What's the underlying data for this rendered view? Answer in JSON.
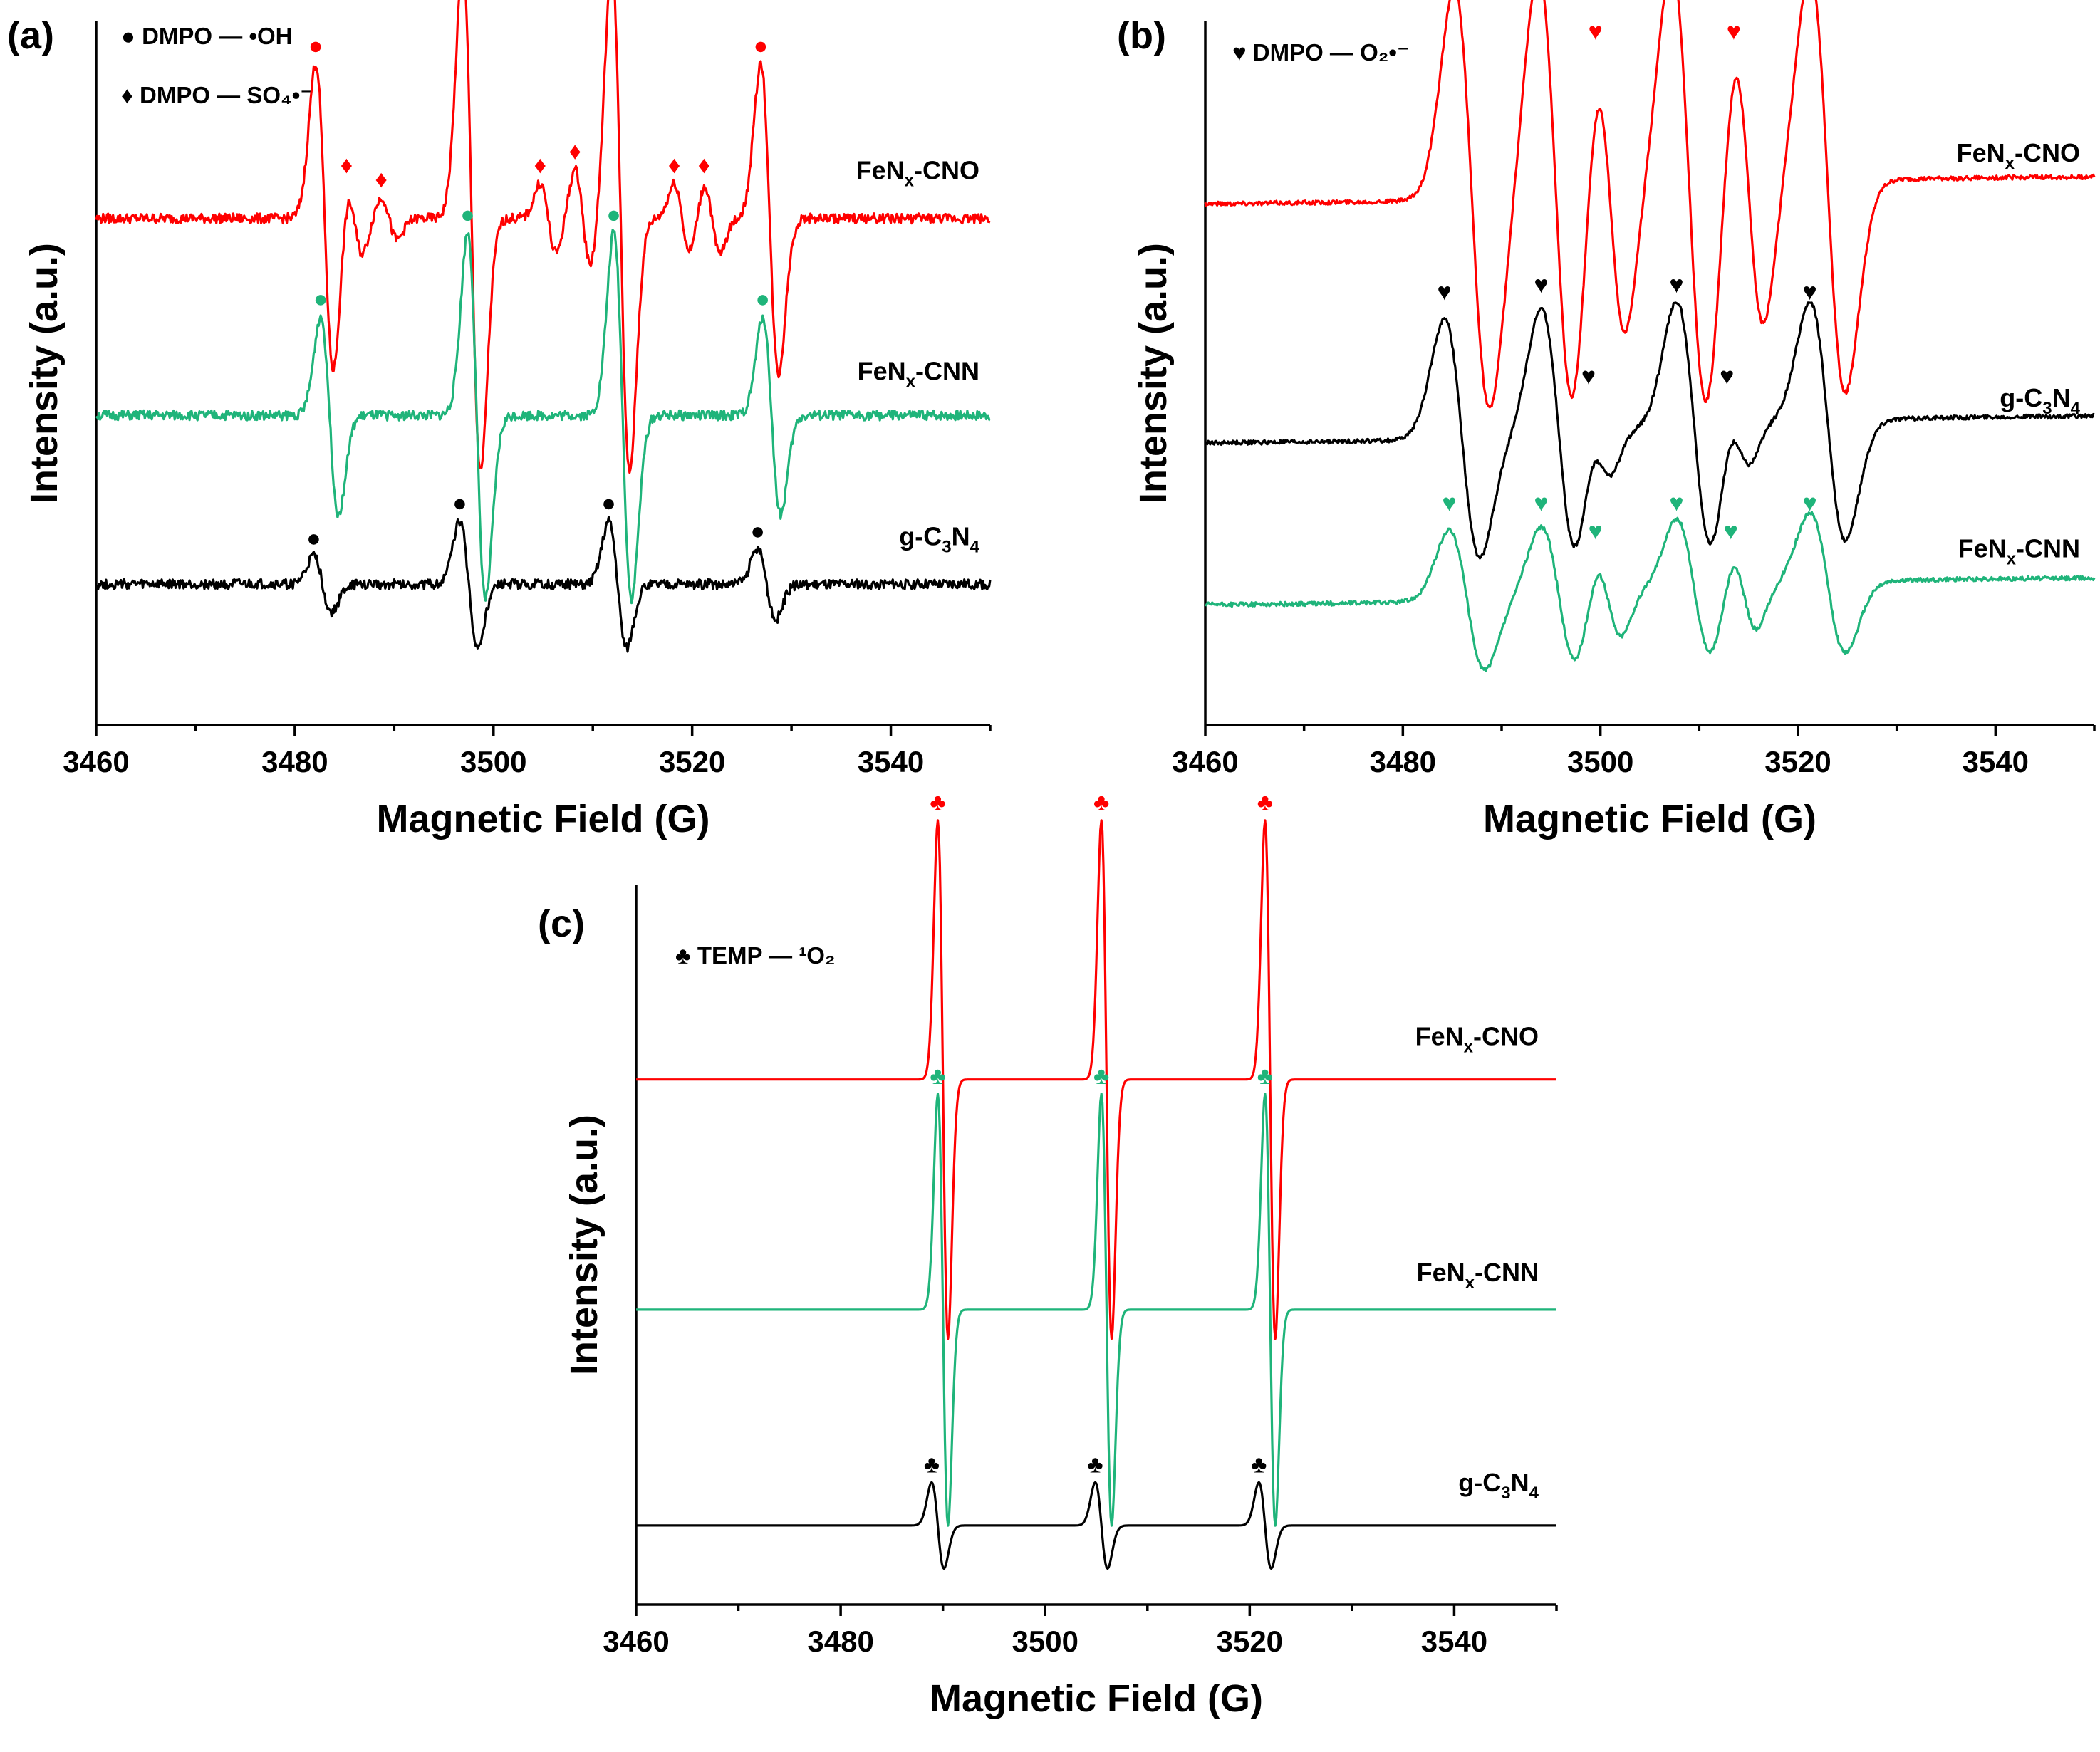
{
  "colors": {
    "red": "#ff0000",
    "green": "#1fb47a",
    "black": "#000000"
  },
  "chart_data": [
    {
      "panel": "(a)",
      "type": "line",
      "xlabel": "Magnetic Field (G)",
      "ylabel": "Intensity (a.u.)",
      "xlim": [
        3460,
        3550
      ],
      "xticks": [
        3460,
        3480,
        3500,
        3520,
        3540
      ],
      "tick_labels": [
        "3460",
        "3480",
        "3500",
        "3520",
        "3540"
      ],
      "legend": [
        {
          "symbol": "●",
          "text": "DMPO — •OH"
        },
        {
          "symbol": "♦",
          "text": "DMPO — SO₄•⁻"
        }
      ],
      "series": [
        {
          "name": "FeNx-CNO",
          "label": {
            "main": "FeN",
            "sub": "x",
            "rest": "-CNO"
          },
          "color": "red",
          "level": 0.72,
          "peaks": [
            {
              "x": 3483.0,
              "amp": 0.22,
              "w": 0.9,
              "marker": "●"
            },
            {
              "x": 3497.8,
              "amp": 0.36,
              "w": 0.9,
              "marker": "●"
            },
            {
              "x": 3512.8,
              "amp": 0.36,
              "w": 0.9,
              "marker": "●"
            },
            {
              "x": 3527.8,
              "amp": 0.22,
              "w": 0.9,
              "marker": "●"
            },
            {
              "x": 3486.0,
              "amp": 0.05,
              "w": 0.8,
              "marker": "♦"
            },
            {
              "x": 3489.5,
              "amp": 0.03,
              "w": 0.8,
              "marker": "♦"
            },
            {
              "x": 3505.5,
              "amp": 0.05,
              "w": 0.8,
              "marker": "♦"
            },
            {
              "x": 3509.0,
              "amp": 0.07,
              "w": 0.8,
              "marker": "♦"
            },
            {
              "x": 3519.0,
              "amp": 0.05,
              "w": 0.8,
              "marker": "♦"
            },
            {
              "x": 3522.0,
              "amp": 0.05,
              "w": 0.8,
              "marker": "♦"
            }
          ]
        },
        {
          "name": "FeNx-CNN",
          "label": {
            "main": "FeN",
            "sub": "x",
            "rest": "-CNN"
          },
          "color": "green",
          "level": 0.44,
          "peaks": [
            {
              "x": 3483.5,
              "amp": 0.14,
              "w": 0.9,
              "marker": "●"
            },
            {
              "x": 3498.3,
              "amp": 0.26,
              "w": 0.9,
              "marker": "●"
            },
            {
              "x": 3513.0,
              "amp": 0.26,
              "w": 0.9,
              "marker": "●"
            },
            {
              "x": 3528.0,
              "amp": 0.14,
              "w": 0.9,
              "marker": "●"
            }
          ]
        },
        {
          "name": "g-C3N4",
          "label": {
            "main": "g-C",
            "sub": "3",
            "rest": "N",
            "sub2": "4"
          },
          "color": "black",
          "level": 0.2,
          "peaks": [
            {
              "x": 3482.8,
              "amp": 0.04,
              "w": 0.9,
              "marker": "●"
            },
            {
              "x": 3497.5,
              "amp": 0.09,
              "w": 0.9,
              "marker": "●"
            },
            {
              "x": 3512.5,
              "amp": 0.09,
              "w": 0.9,
              "marker": "●"
            },
            {
              "x": 3527.5,
              "amp": 0.05,
              "w": 0.9,
              "marker": "●"
            }
          ]
        }
      ]
    },
    {
      "panel": "(b)",
      "type": "line",
      "xlabel": "Magnetic Field (G)",
      "ylabel": "Intensity (a.u.)",
      "xlim": [
        3460,
        3550
      ],
      "xticks": [
        3460,
        3480,
        3500,
        3520,
        3540
      ],
      "tick_labels": [
        "3460",
        "3480",
        "3500",
        "3520",
        "3540"
      ],
      "legend": [
        {
          "symbol": "♥",
          "text": "DMPO — O₂•⁻"
        }
      ],
      "series": [
        {
          "name": "FeNx-CNO",
          "label": {
            "main": "FeN",
            "sub": "x",
            "rest": "-CNO"
          },
          "color": "red",
          "level": 0.76,
          "peaks": [
            {
              "x": 3487.0,
              "amp": 0.3,
              "w": 1.8,
              "marker": "♥"
            },
            {
              "x": 3495.5,
              "amp": 0.32,
              "w": 1.8,
              "marker": "♥"
            },
            {
              "x": 3501.0,
              "amp": 0.2,
              "w": 1.5,
              "marker": "♥"
            },
            {
              "x": 3509.0,
              "amp": 0.32,
              "w": 1.8,
              "marker": "♥"
            },
            {
              "x": 3515.0,
              "amp": 0.2,
              "w": 1.5,
              "marker": "♥"
            },
            {
              "x": 3523.0,
              "amp": 0.3,
              "w": 1.8,
              "marker": "♥"
            }
          ]
        },
        {
          "name": "g-C3N4",
          "label": {
            "main": "g-C",
            "sub": "3",
            "rest": "N",
            "sub2": "4"
          },
          "color": "black",
          "level": 0.42,
          "peaks": [
            {
              "x": 3486.0,
              "amp": 0.17,
              "w": 1.8,
              "marker": "♥"
            },
            {
              "x": 3495.8,
              "amp": 0.18,
              "w": 1.8,
              "marker": "♥"
            },
            {
              "x": 3500.0,
              "amp": 0.05,
              "w": 1.2,
              "marker": "♥"
            },
            {
              "x": 3509.5,
              "amp": 0.18,
              "w": 1.8,
              "marker": "♥"
            },
            {
              "x": 3514.0,
              "amp": 0.05,
              "w": 1.2,
              "marker": "♥"
            },
            {
              "x": 3523.0,
              "amp": 0.17,
              "w": 1.8,
              "marker": "♥"
            }
          ]
        },
        {
          "name": "FeNx-CNN",
          "label": {
            "main": "FeN",
            "sub": "x",
            "rest": "-CNN"
          },
          "color": "green",
          "level": 0.19,
          "peaks": [
            {
              "x": 3486.5,
              "amp": 0.1,
              "w": 1.8,
              "marker": "♥"
            },
            {
              "x": 3495.8,
              "amp": 0.1,
              "w": 1.8,
              "marker": "♥"
            },
            {
              "x": 3500.8,
              "amp": 0.06,
              "w": 1.3,
              "marker": "♥"
            },
            {
              "x": 3509.5,
              "amp": 0.1,
              "w": 1.8,
              "marker": "♥"
            },
            {
              "x": 3514.5,
              "amp": 0.06,
              "w": 1.3,
              "marker": "♥"
            },
            {
              "x": 3523.0,
              "amp": 0.1,
              "w": 1.8,
              "marker": "♥"
            }
          ]
        }
      ]
    },
    {
      "panel": "(c)",
      "type": "line",
      "xlabel": "Magnetic Field (G)",
      "ylabel": "Intensity (a.u.)",
      "xlim": [
        3460,
        3550
      ],
      "xticks": [
        3460,
        3480,
        3500,
        3520,
        3540
      ],
      "tick_labels": [
        "3460",
        "3480",
        "3500",
        "3520",
        "3540"
      ],
      "legend": [
        {
          "symbol": "♣",
          "text": "TEMP — ¹O₂"
        }
      ],
      "series": [
        {
          "name": "FeNx-CNO",
          "label": {
            "main": "FeN",
            "sub": "x",
            "rest": "-CNO"
          },
          "color": "red",
          "level": 0.73,
          "peaks": [
            {
              "x": 3490.0,
              "amp": 0.36,
              "w": 0.5,
              "marker": "♣"
            },
            {
              "x": 3506.0,
              "amp": 0.36,
              "w": 0.5,
              "marker": "♣"
            },
            {
              "x": 3522.0,
              "amp": 0.36,
              "w": 0.5,
              "marker": "♣"
            }
          ]
        },
        {
          "name": "FeNx-CNN",
          "label": {
            "main": "FeN",
            "sub": "x",
            "rest": "-CNN"
          },
          "color": "green",
          "level": 0.41,
          "peaks": [
            {
              "x": 3490.0,
              "amp": 0.3,
              "w": 0.5,
              "marker": "♣"
            },
            {
              "x": 3506.0,
              "amp": 0.3,
              "w": 0.5,
              "marker": "♣"
            },
            {
              "x": 3522.0,
              "amp": 0.3,
              "w": 0.5,
              "marker": "♣"
            }
          ]
        },
        {
          "name": "g-C3N4",
          "label": {
            "main": "g-C",
            "sub": "3",
            "rest": "N",
            "sub2": "4"
          },
          "color": "black",
          "level": 0.11,
          "peaks": [
            {
              "x": 3489.5,
              "amp": 0.06,
              "w": 0.6,
              "marker": "♣"
            },
            {
              "x": 3505.5,
              "amp": 0.06,
              "w": 0.6,
              "marker": "♣"
            },
            {
              "x": 3521.5,
              "amp": 0.06,
              "w": 0.6,
              "marker": "♣"
            }
          ]
        }
      ]
    }
  ]
}
